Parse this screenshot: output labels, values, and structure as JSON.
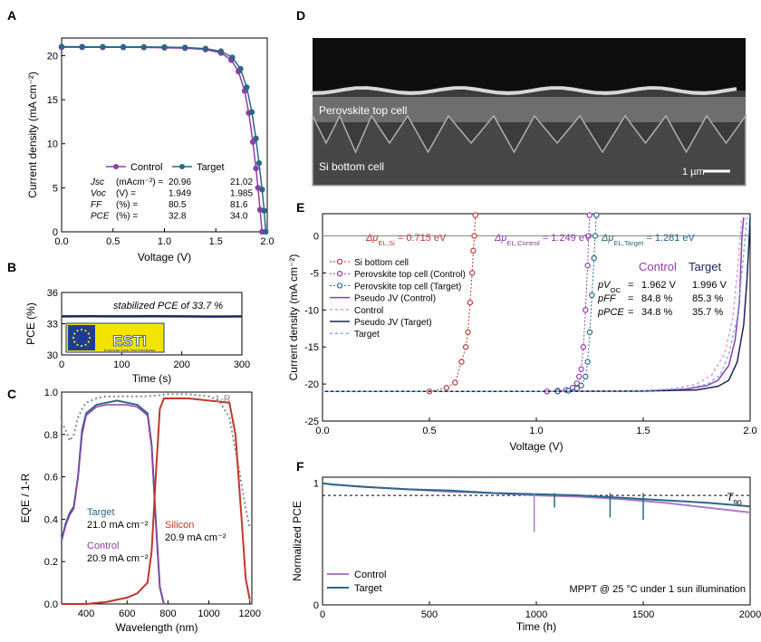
{
  "colors": {
    "control": "#8f3fa6",
    "target": "#2c6688",
    "si": "#b83b3b",
    "pseudo_target": "#1d2460",
    "silicon": "#c0362c",
    "reflect": "#888888",
    "ctrl_light": "#d79be6",
    "target_light": "#7fb6dd"
  },
  "panels": [
    "A",
    "B",
    "C",
    "D",
    "E",
    "F"
  ],
  "chart_data": [
    {
      "panel": "A",
      "type": "line",
      "xlabel": "Voltage (V)",
      "ylabel": "Current density (mA cm⁻²)",
      "xlim": [
        0,
        2.0
      ],
      "ylim": [
        0,
        22
      ],
      "xticks": [
        "0.0",
        "0.5",
        "1.0",
        "1.5",
        "2.0"
      ],
      "yticks": [
        "0",
        "5",
        "10",
        "15",
        "20"
      ],
      "legend": [
        "Control",
        "Target"
      ],
      "series": [
        {
          "name": "Control",
          "x": [
            0,
            0.2,
            0.4,
            0.6,
            0.8,
            1.0,
            1.2,
            1.4,
            1.55,
            1.65,
            1.72,
            1.78,
            1.82,
            1.86,
            1.89,
            1.91,
            1.93,
            1.949
          ],
          "y": [
            20.96,
            20.95,
            20.95,
            20.94,
            20.93,
            20.9,
            20.85,
            20.7,
            20.3,
            19.5,
            18.2,
            16.0,
            13.5,
            10.2,
            7.2,
            5.0,
            2.5,
            0
          ]
        },
        {
          "name": "Target",
          "x": [
            0,
            0.2,
            0.4,
            0.6,
            0.8,
            1.0,
            1.2,
            1.4,
            1.55,
            1.66,
            1.74,
            1.8,
            1.85,
            1.89,
            1.92,
            1.95,
            1.97,
            1.985
          ],
          "y": [
            21.02,
            21.01,
            21.0,
            21.0,
            20.99,
            20.97,
            20.93,
            20.8,
            20.5,
            19.8,
            18.5,
            16.4,
            13.6,
            10.6,
            7.8,
            4.8,
            2.4,
            0
          ]
        }
      ],
      "table": {
        "header": [
          "",
          "",
          "21.02"
        ],
        "rows": [
          {
            "label": "Jsc",
            "unit": "(mAcm⁻²) =",
            "control": "20.96",
            "target": "21.02"
          },
          {
            "label": "Voc",
            "unit": "(V)        =",
            "control": "1.949",
            "target": "1.985"
          },
          {
            "label": "FF",
            "unit": "(%)       =",
            "control": "80.5",
            "target": "81.6"
          },
          {
            "label": "PCE",
            "unit": "(%)       =",
            "control": "32.8",
            "target": "34.0"
          }
        ]
      }
    },
    {
      "panel": "B",
      "type": "line",
      "xlabel": "Time (s)",
      "ylabel": "PCE (%)",
      "xlim": [
        0,
        300
      ],
      "ylim": [
        30,
        36
      ],
      "xticks": [
        "0",
        "100",
        "200",
        "300"
      ],
      "yticks": [
        "30",
        "33",
        "36"
      ],
      "annotation_prefix": "stabilized PCE of ",
      "annotation_value": "33.7 %",
      "logo_text": "ESTI",
      "logo_subtext": "European Solar Test Installation",
      "series": [
        {
          "name": "",
          "x": [
            0,
            50,
            100,
            150,
            200,
            250,
            300
          ],
          "y": [
            33.7,
            33.72,
            33.7,
            33.71,
            33.7,
            33.69,
            33.7
          ]
        }
      ]
    },
    {
      "panel": "C",
      "type": "line",
      "xlabel": "Wavelength (nm)",
      "ylabel": "EQE / 1-R",
      "xlim": [
        280,
        1210
      ],
      "ylim": [
        0,
        1.0
      ],
      "xticks": [
        "400",
        "600",
        "800",
        "1000",
        "1200"
      ],
      "yticks": [
        "0.0",
        "0.2",
        "0.4",
        "0.6",
        "0.8",
        "1.0"
      ],
      "annotations": [
        {
          "text": "1-R"
        },
        {
          "text": "Target"
        },
        {
          "text": "21.0 mA cm⁻²"
        },
        {
          "text": "Control"
        },
        {
          "text": "20.9 mA cm⁻²"
        },
        {
          "text": "Silicon"
        },
        {
          "text": "20.9 mA cm⁻²"
        }
      ],
      "series": [
        {
          "name": "1-R",
          "x": [
            280,
            300,
            320,
            340,
            360,
            380,
            400,
            450,
            500,
            550,
            600,
            700,
            800,
            900,
            1000,
            1050,
            1100,
            1150,
            1180,
            1200
          ],
          "y": [
            0.86,
            0.82,
            0.77,
            0.8,
            0.88,
            0.92,
            0.95,
            0.97,
            0.98,
            0.98,
            0.98,
            0.98,
            0.99,
            0.99,
            0.98,
            0.96,
            0.88,
            0.62,
            0.45,
            0.36
          ]
        },
        {
          "name": "Target",
          "x": [
            280,
            300,
            320,
            340,
            360,
            380,
            400,
            450,
            500,
            550,
            600,
            650,
            700,
            720,
            740,
            760,
            780
          ],
          "y": [
            0.3,
            0.38,
            0.43,
            0.46,
            0.6,
            0.82,
            0.9,
            0.94,
            0.95,
            0.96,
            0.95,
            0.94,
            0.9,
            0.75,
            0.4,
            0.08,
            0.0
          ]
        },
        {
          "name": "Control",
          "x": [
            280,
            300,
            320,
            340,
            360,
            380,
            400,
            450,
            500,
            550,
            600,
            650,
            700,
            720,
            740,
            760,
            780
          ],
          "y": [
            0.3,
            0.37,
            0.42,
            0.45,
            0.6,
            0.8,
            0.89,
            0.93,
            0.94,
            0.94,
            0.94,
            0.93,
            0.89,
            0.74,
            0.39,
            0.08,
            0.0
          ]
        },
        {
          "name": "Silicon",
          "x": [
            280,
            400,
            500,
            600,
            650,
            700,
            720,
            740,
            760,
            780,
            800,
            850,
            900,
            1000,
            1100,
            1130,
            1160,
            1180,
            1200
          ],
          "y": [
            0.0,
            0.0,
            0.01,
            0.03,
            0.05,
            0.1,
            0.25,
            0.6,
            0.92,
            0.97,
            0.97,
            0.97,
            0.97,
            0.96,
            0.95,
            0.8,
            0.4,
            0.12,
            0.02
          ]
        }
      ]
    },
    {
      "panel": "D",
      "type": "image",
      "labels": [
        "Perovskite top cell",
        "Si bottom cell"
      ],
      "scalebar": "1 µm"
    },
    {
      "panel": "E",
      "type": "line",
      "xlabel": "Voltage (V)",
      "ylabel": "Current density (mA cm⁻²)",
      "xlim": [
        0,
        2.0
      ],
      "ylim": [
        -25,
        3
      ],
      "xticks": [
        "0.0",
        "0.5",
        "1.0",
        "1.5",
        "2.0"
      ],
      "yticks": [
        "-25",
        "-20",
        "-15",
        "-10",
        "-5",
        "0"
      ],
      "legend": [
        "Si bottom cell",
        "Perovskite top cell (Control)",
        "Perovskite top cell (Target)",
        "Pseudo JV (Control)",
        "Control",
        "Pseudo JV (Target)",
        "Target"
      ],
      "delta_mu": [
        {
          "prefix": "Δμ",
          "sub": "EL,Si",
          "value": " = 0.715 eV"
        },
        {
          "prefix": "Δμ",
          "sub": "EL,Control",
          "value": " = 1.249 eV"
        },
        {
          "prefix": "Δμ",
          "sub": "EL,Target",
          "value": " = 1.281 eV"
        }
      ],
      "table": {
        "col_control": "Control",
        "col_target": "Target",
        "rows": [
          {
            "label": "pV",
            "sub": "OC",
            "eq": "=",
            "control": "1.962 V",
            "target": "1.996 V"
          },
          {
            "label": "pFF",
            "sub": "",
            "eq": "=",
            "control": "84.8 %",
            "target": "85.3 %"
          },
          {
            "label": "pPCE",
            "sub": "",
            "eq": "=",
            "control": "34.8 %",
            "target": "35.7 %"
          }
        ]
      },
      "series": [
        {
          "name": "Si bottom cell",
          "x": [
            0.5,
            0.58,
            0.62,
            0.65,
            0.67,
            0.68,
            0.69,
            0.7,
            0.705,
            0.71,
            0.715
          ],
          "y": [
            -21,
            -20.5,
            -19.8,
            -17,
            -15,
            -13,
            -9,
            -5,
            -2,
            0,
            2.8
          ]
        },
        {
          "name": "Perovskite top cell (Control)",
          "x": [
            1.05,
            1.1,
            1.14,
            1.17,
            1.19,
            1.2,
            1.21,
            1.22,
            1.23,
            1.24,
            1.245,
            1.249
          ],
          "y": [
            -21,
            -20.9,
            -20.8,
            -20.5,
            -19.9,
            -19,
            -18,
            -15,
            -10,
            -4,
            0,
            2.8
          ]
        },
        {
          "name": "Perovskite top cell (Target)",
          "x": [
            1.1,
            1.15,
            1.19,
            1.21,
            1.23,
            1.24,
            1.25,
            1.26,
            1.27,
            1.275,
            1.281
          ],
          "y": [
            -21,
            -20.9,
            -20.6,
            -20.2,
            -19,
            -17,
            -13,
            -8,
            -3,
            0,
            2.8
          ]
        },
        {
          "name": "Pseudo JV (Control)",
          "x": [
            0,
            1.0,
            1.5,
            1.7,
            1.8,
            1.85,
            1.9,
            1.93,
            1.95,
            1.962,
            1.97
          ],
          "y": [
            -21,
            -21,
            -20.95,
            -20.7,
            -20.2,
            -19.5,
            -17.5,
            -14,
            -9,
            0,
            2.5
          ]
        },
        {
          "name": "Control",
          "x": [
            0,
            1.0,
            1.5,
            1.65,
            1.75,
            1.82,
            1.88,
            1.92,
            1.946,
            1.96
          ],
          "y": [
            -21,
            -21,
            -20.9,
            -20.6,
            -20.0,
            -18.8,
            -16,
            -11,
            -3,
            2.5
          ]
        },
        {
          "name": "Pseudo JV (Target)",
          "x": [
            0,
            1.0,
            1.5,
            1.75,
            1.85,
            1.9,
            1.94,
            1.97,
            1.985,
            1.996,
            2.0
          ],
          "y": [
            -21,
            -21,
            -20.95,
            -20.8,
            -20.3,
            -19.5,
            -17,
            -12,
            -6,
            0,
            2.5
          ]
        },
        {
          "name": "Target",
          "x": [
            0,
            1.0,
            1.5,
            1.7,
            1.8,
            1.86,
            1.9,
            1.94,
            1.965,
            1.985
          ],
          "y": [
            -21,
            -21,
            -20.9,
            -20.6,
            -20.0,
            -18.8,
            -16,
            -11,
            -4,
            2.5
          ]
        }
      ]
    },
    {
      "panel": "F",
      "type": "line",
      "xlabel": "Time (h)",
      "ylabel": "Normalized PCE",
      "xlim": [
        0,
        2000
      ],
      "ylim": [
        0,
        1.05
      ],
      "xticks": [
        "0",
        "500",
        "1000",
        "1500",
        "2000"
      ],
      "yticks": [
        "0",
        "1"
      ],
      "legend": [
        "Control",
        "Target"
      ],
      "threshold_label": "T",
      "threshold_sub": "90",
      "threshold_value": 0.9,
      "condition_text": "MPPT @ 25 °C under 1 sun illumination",
      "series": [
        {
          "name": "Control",
          "x": [
            0,
            50,
            200,
            400,
            600,
            800,
            1000,
            1200,
            1400,
            1600,
            1800,
            2000
          ],
          "y": [
            1.0,
            0.99,
            0.97,
            0.95,
            0.93,
            0.92,
            0.9,
            0.89,
            0.87,
            0.84,
            0.8,
            0.76
          ]
        },
        {
          "name": "Target",
          "x": [
            0,
            50,
            200,
            400,
            600,
            800,
            1000,
            1200,
            1400,
            1600,
            1800,
            2000
          ],
          "y": [
            1.0,
            0.99,
            0.97,
            0.95,
            0.94,
            0.92,
            0.91,
            0.9,
            0.88,
            0.86,
            0.84,
            0.81
          ]
        }
      ],
      "dips": [
        {
          "name": "Control",
          "x": 990,
          "y": 0.6
        },
        {
          "name": "Target",
          "x": 1085,
          "y": 0.8
        },
        {
          "name": "Target",
          "x": 1345,
          "y": 0.72
        },
        {
          "name": "Target",
          "x": 1500,
          "y": 0.7
        }
      ]
    }
  ]
}
